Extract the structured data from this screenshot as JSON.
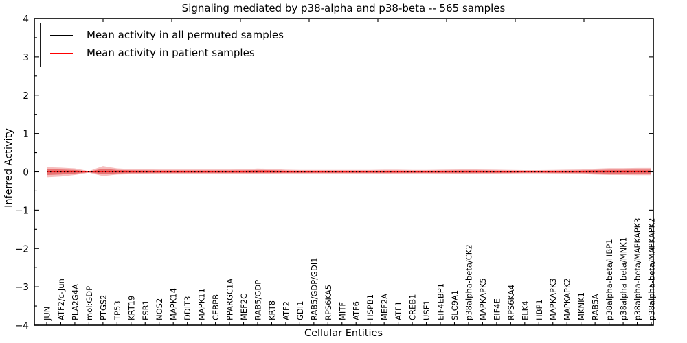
{
  "title": "Signaling mediated by p38-alpha and p38-beta -- 565 samples",
  "legend": {
    "entries": [
      {
        "label": "Mean activity in all permuted samples",
        "color": "#000000"
      },
      {
        "label": "Mean activity in patient samples",
        "color": "#ff0000"
      }
    ]
  },
  "chart_data": {
    "type": "line",
    "title": "Signaling mediated by p38-alpha and p38-beta -- 565 samples",
    "xlabel": "Cellular Entities",
    "ylabel": "Inferred Activity",
    "ylim": [
      -4,
      4
    ],
    "yticks_major": [
      -4,
      -3,
      -2,
      -1,
      0,
      1,
      2,
      3,
      4
    ],
    "ytick_minor_step": 0.5,
    "grid": false,
    "legend_position": "upper-left",
    "n_samples": 565,
    "categories": [
      "JUN",
      "ATF2/c-Jun",
      "PLA2G4A",
      "mol:GDP",
      "PTGS2",
      "TP53",
      "KRT19",
      "ESR1",
      "NOS2",
      "MAPK14",
      "DDIT3",
      "MAPK11",
      "CEBPB",
      "PPARGC1A",
      "MEF2C",
      "RAB5/GDP",
      "KRT8",
      "ATF2",
      "GDI1",
      "RAB5/GDP/GDI1",
      "RPS6KA5",
      "MITF",
      "ATF6",
      "HSPB1",
      "MEF2A",
      "ATF1",
      "CREB1",
      "USF1",
      "EIF4EBP1",
      "SLC9A1",
      "p38alpha-beta/CK2",
      "MAPKAPK5",
      "EIF4E",
      "RPS6KA4",
      "ELK4",
      "HBP1",
      "MAPKAPK3",
      "MAPKAPK2",
      "MKNK1",
      "RAB5A",
      "p38alpha-beta/HBP1",
      "p38alpha-beta/MNK1",
      "p38alpha-beta/MAPKAPK3",
      "p38alpha-beta/MAPKAPK2"
    ],
    "series": [
      {
        "name": "Mean activity in all permuted samples",
        "color": "#000000",
        "line_style": "dotted",
        "values": [
          0,
          0,
          0,
          0,
          0,
          0,
          0,
          0,
          0,
          0,
          0,
          0,
          0,
          0,
          0,
          0,
          0,
          0,
          0,
          0,
          0,
          0,
          0,
          0,
          0,
          0,
          0,
          0,
          0,
          0,
          0,
          0,
          0,
          0,
          0,
          0,
          0,
          0,
          0,
          0,
          0,
          0,
          0,
          0
        ]
      },
      {
        "name": "Mean activity in patient samples",
        "color": "#ff0000",
        "line_style": "solid",
        "values": [
          0.01,
          0.01,
          0.01,
          0.01,
          0.01,
          0.01,
          0.01,
          0.01,
          0.01,
          0.01,
          0.01,
          0.01,
          0.01,
          0.01,
          0.01,
          0.01,
          0.01,
          0.01,
          0.01,
          0.01,
          0.01,
          0.01,
          0.01,
          0.01,
          0.01,
          0.01,
          0.01,
          0.01,
          0.01,
          0.01,
          0.01,
          0.01,
          0.01,
          0.01,
          0.01,
          0.01,
          0.01,
          0.01,
          0.01,
          0.01,
          0.01,
          0.01,
          0.01,
          0.01
        ]
      }
    ],
    "bands": [
      {
        "name": "patient-activity-spread-outer",
        "fill": "rgba(220,20,20,0.28)",
        "upper": [
          0.12,
          0.11,
          0.09,
          0.02,
          0.15,
          0.09,
          0.07,
          0.065,
          0.06,
          0.06,
          0.06,
          0.06,
          0.06,
          0.06,
          0.065,
          0.085,
          0.075,
          0.055,
          0.05,
          0.05,
          0.05,
          0.05,
          0.05,
          0.05,
          0.055,
          0.055,
          0.05,
          0.05,
          0.055,
          0.06,
          0.065,
          0.06,
          0.055,
          0.05,
          0.045,
          0.045,
          0.05,
          0.055,
          0.06,
          0.08,
          0.095,
          0.095,
          0.1,
          0.1
        ],
        "lower": [
          -0.14,
          -0.12,
          -0.08,
          -0.02,
          -0.11,
          -0.07,
          -0.06,
          -0.055,
          -0.05,
          -0.05,
          -0.05,
          -0.05,
          -0.05,
          -0.05,
          -0.05,
          -0.05,
          -0.05,
          -0.045,
          -0.045,
          -0.045,
          -0.045,
          -0.045,
          -0.045,
          -0.045,
          -0.05,
          -0.05,
          -0.045,
          -0.045,
          -0.05,
          -0.055,
          -0.055,
          -0.05,
          -0.05,
          -0.045,
          -0.04,
          -0.04,
          -0.045,
          -0.05,
          -0.055,
          -0.07,
          -0.08,
          -0.08,
          -0.085,
          -0.085
        ]
      },
      {
        "name": "patient-activity-spread-inner",
        "fill": "rgba(220,20,20,0.45)",
        "upper": [
          0.07,
          0.06,
          0.05,
          0.01,
          0.08,
          0.05,
          0.04,
          0.038,
          0.035,
          0.035,
          0.035,
          0.035,
          0.035,
          0.035,
          0.038,
          0.048,
          0.042,
          0.032,
          0.03,
          0.03,
          0.03,
          0.03,
          0.03,
          0.03,
          0.032,
          0.032,
          0.03,
          0.03,
          0.032,
          0.035,
          0.038,
          0.035,
          0.032,
          0.03,
          0.027,
          0.027,
          0.03,
          0.032,
          0.035,
          0.046,
          0.054,
          0.054,
          0.057,
          0.057
        ],
        "lower": [
          -0.08,
          -0.066,
          -0.045,
          -0.01,
          -0.06,
          -0.04,
          -0.034,
          -0.031,
          -0.029,
          -0.029,
          -0.029,
          -0.029,
          -0.029,
          -0.029,
          -0.029,
          -0.029,
          -0.029,
          -0.026,
          -0.026,
          -0.026,
          -0.026,
          -0.026,
          -0.026,
          -0.026,
          -0.029,
          -0.029,
          -0.026,
          -0.026,
          -0.029,
          -0.031,
          -0.031,
          -0.029,
          -0.029,
          -0.026,
          -0.023,
          -0.023,
          -0.026,
          -0.029,
          -0.031,
          -0.04,
          -0.046,
          -0.046,
          -0.049,
          -0.049
        ]
      }
    ]
  }
}
